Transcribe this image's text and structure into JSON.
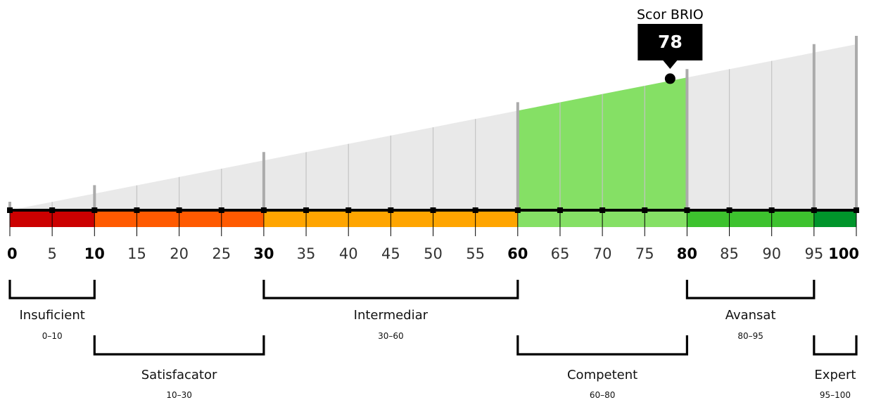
{
  "chart_data": {
    "type": "gauge",
    "score_label": "Scor BRIO",
    "score": 78,
    "xlim": [
      0,
      100
    ],
    "ticks": [
      0,
      5,
      10,
      15,
      20,
      25,
      30,
      35,
      40,
      45,
      50,
      55,
      60,
      65,
      70,
      75,
      80,
      85,
      90,
      95,
      100
    ],
    "major_ticks": [
      0,
      10,
      30,
      60,
      80,
      95,
      100
    ],
    "bold_tick_labels": [
      0,
      10,
      30,
      60,
      80,
      100
    ],
    "highlight_range": [
      60,
      80
    ],
    "bands": [
      {
        "name": "Insuficient",
        "range_label": "0–10",
        "from": 0,
        "to": 10,
        "color": "#cc0000",
        "bracket_row": "top"
      },
      {
        "name": "Satisfacator",
        "range_label": "10–30",
        "from": 10,
        "to": 30,
        "color": "#ff5a00",
        "bracket_row": "bottom"
      },
      {
        "name": "Intermediar",
        "range_label": "30–60",
        "from": 30,
        "to": 60,
        "color": "#ffa500",
        "bracket_row": "top"
      },
      {
        "name": "Competent",
        "range_label": "60–80",
        "from": 60,
        "to": 80,
        "color": "#85e065",
        "bracket_row": "bottom"
      },
      {
        "name": "Avansat",
        "range_label": "80–95",
        "from": 80,
        "to": 95,
        "color": "#3dc22e",
        "bracket_row": "top"
      },
      {
        "name": "Expert",
        "range_label": "95–100",
        "from": 95,
        "to": 100,
        "color": "#00952b",
        "bracket_row": "bottom"
      }
    ],
    "colors": {
      "wedge": "#e9e9e9",
      "highlight": "#85e065",
      "marker": "#000000",
      "callout_bg": "#000000",
      "gridline": "#c4c4c4",
      "major_gridline": "#ababab"
    }
  }
}
